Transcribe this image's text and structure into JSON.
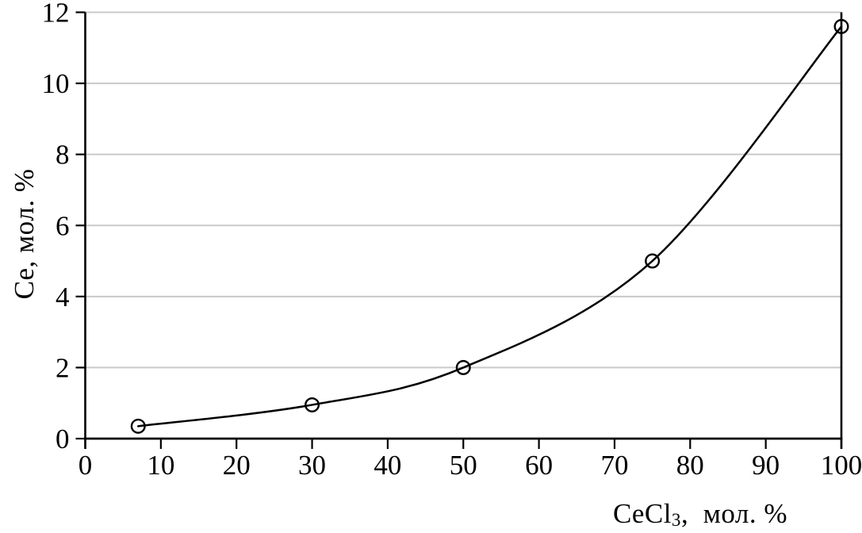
{
  "chart_data": {
    "type": "line",
    "title": "",
    "xlabel": {
      "prefix": "CeCl",
      "subscript": "3",
      "suffix": ",  мол. %"
    },
    "ylabel": "Ce, мол. %",
    "x": [
      7,
      30,
      50,
      75,
      100
    ],
    "y": [
      0.35,
      0.95,
      2.0,
      5.0,
      11.6
    ],
    "xlim": [
      0,
      100
    ],
    "ylim": [
      0,
      12
    ],
    "xticks": [
      0,
      10,
      20,
      30,
      40,
      50,
      60,
      70,
      80,
      90,
      100
    ],
    "yticks": [
      0,
      2,
      4,
      6,
      8,
      10,
      12
    ],
    "grid": "horizontal-only",
    "legend": "none",
    "marker": "open-circle",
    "colors": {
      "curve": "#000000",
      "axis": "#000000",
      "gridline": "#c9c9c9",
      "text": "#000000",
      "background": "#ffffff"
    }
  }
}
